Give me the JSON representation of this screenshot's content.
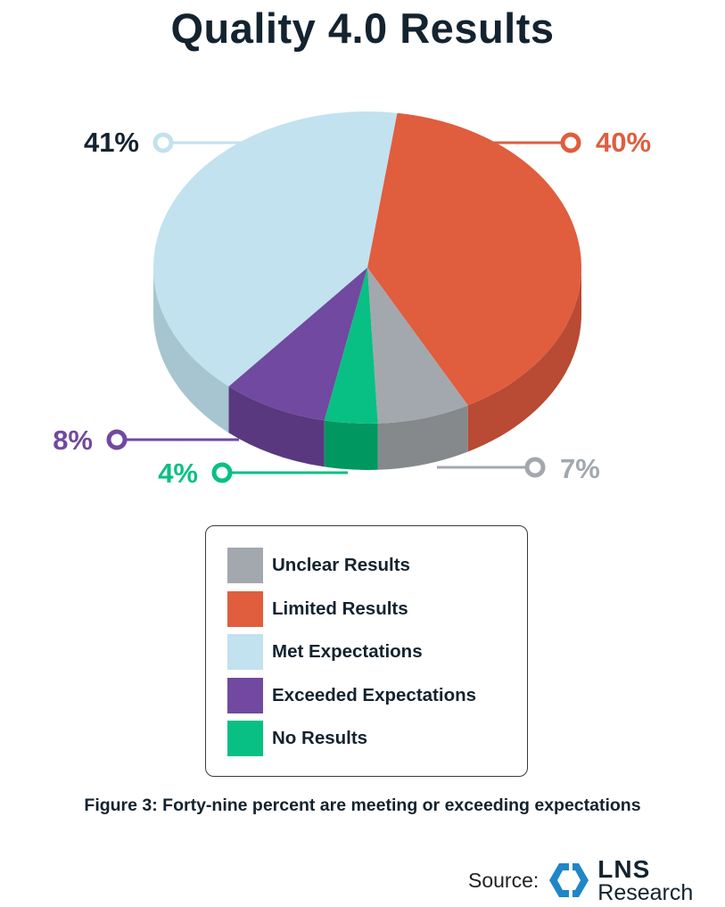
{
  "chart_data": {
    "type": "pie",
    "title": "Quality 4.0 Results",
    "slices": [
      {
        "name": "Limited Results",
        "value": 40,
        "label": "40%",
        "color": "#e05d3e",
        "side_color": "#b94a33",
        "label_color": "#e05d3e"
      },
      {
        "name": "Unclear Results",
        "value": 7,
        "label": "7%",
        "color": "#a3a8ae",
        "side_color": "#86898c",
        "label_color": "#a3a8ae"
      },
      {
        "name": "No Results",
        "value": 4,
        "label": "4%",
        "color": "#08c083",
        "side_color": "#009760",
        "label_color": "#08c083"
      },
      {
        "name": "Exceeded Expectations",
        "value": 8,
        "label": "8%",
        "color": "#7149a0",
        "side_color": "#593880",
        "label_color": "#7149a0"
      },
      {
        "name": "Met Expectations",
        "value": 41,
        "label": "41%",
        "color": "#c1e2ee",
        "side_color": "#a7c5d1",
        "label_color": "#13232f"
      }
    ],
    "legend": {
      "placement": "bottom",
      "items": [
        {
          "label": "Unclear Results",
          "color": "#a3a8ae"
        },
        {
          "label": "Limited Results",
          "color": "#e05d3e"
        },
        {
          "label": "Met Expectations",
          "color": "#c1e2ee"
        },
        {
          "label": "Exceeded Expectations",
          "color": "#7149a0"
        },
        {
          "label": "No Results",
          "color": "#08c083"
        }
      ]
    }
  },
  "caption": "Figure 3: Forty-nine percent are meeting or exceeding expectations",
  "source": {
    "label": "Source:",
    "brand_name": "LNS",
    "brand_sub": "Research",
    "logo_color": "#1f86c8"
  }
}
